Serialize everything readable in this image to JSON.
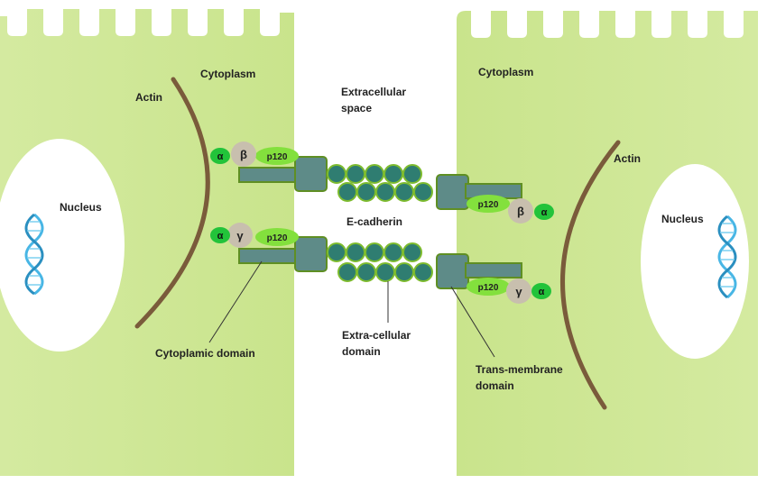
{
  "labels": {
    "cytoplasm_left": "Cytoplasm",
    "cytoplasm_right": "Cytoplasm",
    "extracellular_line1": "Extracellular",
    "extracellular_line2": "space",
    "actin_left": "Actin",
    "actin_right": "Actin",
    "nucleus_left": "Nucleus",
    "nucleus_right": "Nucleus",
    "ecadherin": "E-cadherin",
    "cytoplasmic_domain": "Cytoplamic domain",
    "extracellular_domain_line1": "Extra-cellular",
    "extracellular_domain_line2": "domain",
    "transmembrane_line1": "Trans-membrane",
    "transmembrane_line2": "domain"
  },
  "proteins": {
    "alpha": "α",
    "beta": "β",
    "gamma": "γ",
    "p120": "p120"
  },
  "colors": {
    "cell_fill": "#d2e99c",
    "cell_fill_light": "#e6f2c4",
    "membrane_rod": "#5e8b88",
    "membrane_border": "#5f8f23",
    "bead": "#2f7d71",
    "bead_border": "#7dbb2e",
    "alpha_fill": "#22c33a",
    "p120_fill": "#83e03d",
    "greek_fill": "#c8bfae",
    "actin": "#7a5b3b",
    "dna": "#48b6e5",
    "line": "#333333"
  }
}
